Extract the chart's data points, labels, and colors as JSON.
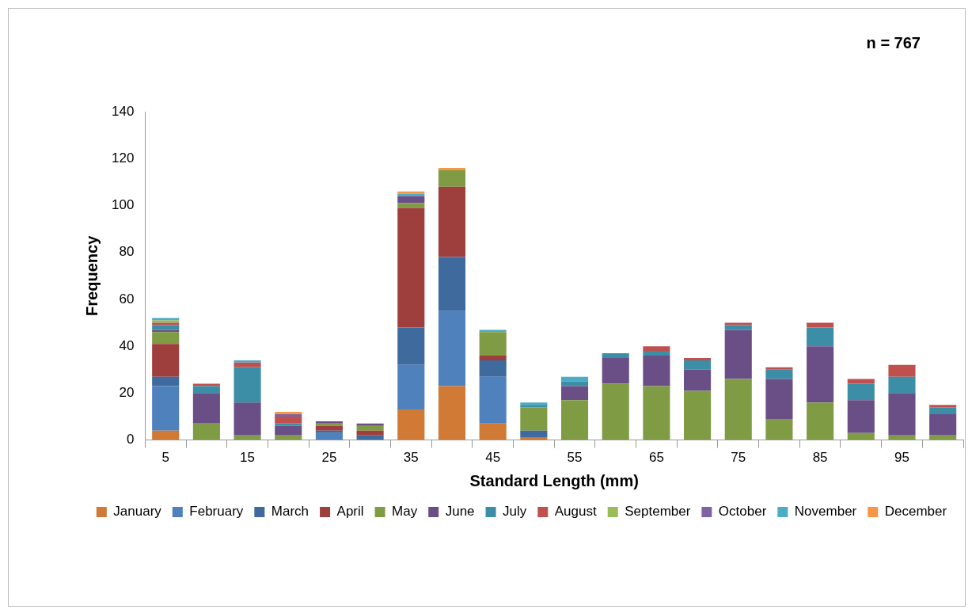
{
  "chart_data": {
    "type": "bar",
    "stacked": true,
    "xlabel": "Standard Length (mm)",
    "ylabel": "Frequency",
    "annotations": [
      "n = 767"
    ],
    "categories": [
      "5",
      null,
      "15",
      null,
      "25",
      null,
      "35",
      null,
      "45",
      null,
      "55",
      null,
      "65",
      null,
      "75",
      null,
      "85",
      null,
      "95",
      null
    ],
    "ylim": [
      0,
      140
    ],
    "yticks": [
      0,
      20,
      40,
      60,
      80,
      100,
      120,
      140
    ],
    "grid": false,
    "legend": "bottom",
    "series": [
      {
        "name": "January",
        "color": "#d07a35",
        "values": [
          4,
          0,
          0,
          0,
          0,
          0,
          13,
          23,
          7,
          1,
          0,
          0,
          0,
          0,
          0,
          0,
          0,
          0,
          0,
          0
        ]
      },
      {
        "name": "February",
        "color": "#4f81bd",
        "values": [
          19,
          0,
          0,
          0,
          3,
          0,
          19,
          32,
          20,
          0,
          0,
          0,
          0,
          0,
          0,
          0,
          0,
          0,
          0,
          0
        ]
      },
      {
        "name": "March",
        "color": "#3e6a9e",
        "values": [
          4,
          0,
          0,
          0,
          1,
          2,
          16,
          23,
          7,
          3,
          0,
          0,
          0,
          0,
          0,
          0,
          0,
          0,
          0,
          0
        ]
      },
      {
        "name": "April",
        "color": "#9e3f3d",
        "values": [
          14,
          0,
          0,
          0,
          2,
          2,
          51,
          30,
          2,
          0,
          0,
          0,
          0,
          0,
          0,
          0,
          0,
          0,
          0,
          0
        ]
      },
      {
        "name": "May",
        "color": "#7f9c45",
        "values": [
          5,
          7,
          2,
          2,
          1,
          2,
          2,
          7,
          10,
          10,
          17,
          24,
          23,
          21,
          26,
          9,
          16,
          3,
          2,
          2
        ]
      },
      {
        "name": "June",
        "color": "#6a4f87",
        "values": [
          1,
          13,
          14,
          4,
          1,
          1,
          3,
          0,
          0,
          0,
          6,
          11,
          13,
          9,
          21,
          17,
          24,
          14,
          18,
          9
        ]
      },
      {
        "name": "July",
        "color": "#3b8ea5",
        "values": [
          2,
          3,
          15,
          1,
          0,
          0,
          0,
          0,
          0,
          1,
          2,
          2,
          2,
          4,
          2,
          4,
          8,
          7,
          7,
          3
        ]
      },
      {
        "name": "August",
        "color": "#c0504d",
        "values": [
          1,
          1,
          2,
          3,
          0,
          0,
          0,
          0,
          0,
          0,
          0,
          0,
          2,
          1,
          1,
          1,
          2,
          2,
          5,
          1
        ]
      },
      {
        "name": "September",
        "color": "#9bbb59",
        "values": [
          1,
          0,
          0,
          0,
          0,
          0,
          0,
          0,
          0,
          0,
          0,
          0,
          0,
          0,
          0,
          0,
          0,
          0,
          0,
          0
        ]
      },
      {
        "name": "October",
        "color": "#8064a2",
        "values": [
          0,
          0,
          0,
          1,
          0,
          0,
          0,
          0,
          0,
          0,
          0,
          0,
          0,
          0,
          0,
          0,
          0,
          0,
          0,
          0
        ]
      },
      {
        "name": "November",
        "color": "#4bacc6",
        "values": [
          1,
          0,
          1,
          0,
          0,
          0,
          1,
          0,
          1,
          1,
          2,
          0,
          0,
          0,
          0,
          0,
          0,
          0,
          0,
          0
        ]
      },
      {
        "name": "December",
        "color": "#f79646",
        "values": [
          0,
          0,
          0,
          1,
          0,
          0,
          1,
          1,
          0,
          0,
          0,
          0,
          0,
          0,
          0,
          0,
          0,
          0,
          0,
          0
        ]
      }
    ]
  }
}
